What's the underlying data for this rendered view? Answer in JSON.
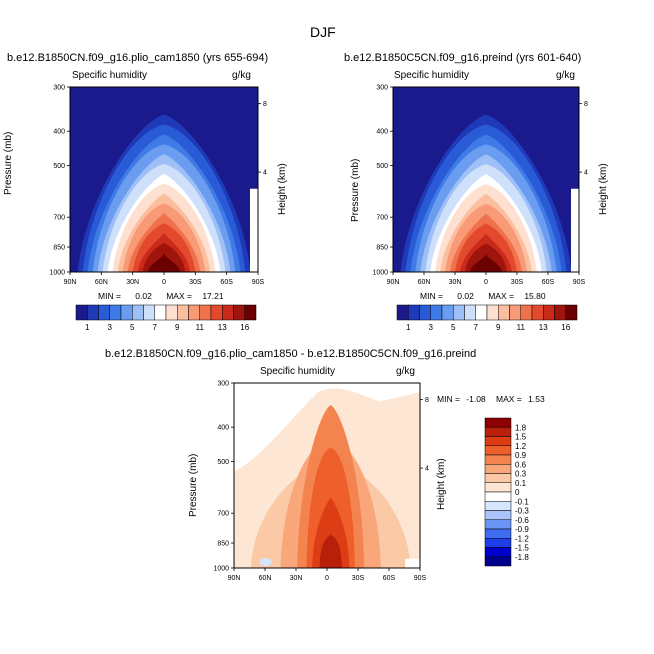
{
  "season": "DJF",
  "colors": {
    "abs_scale": [
      "#1a1a8c",
      "#1f3ab8",
      "#2a5bd6",
      "#3f7be6",
      "#6a9df0",
      "#9ec0f7",
      "#cfe0fb",
      "#ffffff",
      "#fde0cf",
      "#fbbfa0",
      "#f79a75",
      "#f0724d",
      "#e34a2d",
      "#c92a1a",
      "#a0140e",
      "#6b0000"
    ],
    "diff_scale": [
      "#00008b",
      "#0000cd",
      "#1e3fe6",
      "#3f6bf0",
      "#6b94f5",
      "#a9c4fa",
      "#d6e4fc",
      "#ffffff",
      "#fde6d3",
      "#fbc9a6",
      "#f8a67a",
      "#f4844f",
      "#ee5f2c",
      "#dc3d14",
      "#b8200a",
      "#8b0000"
    ]
  },
  "chart_data": [
    {
      "type": "heatmap",
      "panel": "top-left",
      "title": "b.e12.B1850CN.f09_g16.plio_cam1850 (yrs 655-694)",
      "variable": "Specific humidity",
      "units": "g/kg",
      "ylabel": "Pressure (mb)",
      "y2label": "Height (km)",
      "x_ticks": [
        "90N",
        "60N",
        "30N",
        "0",
        "30S",
        "60S",
        "90S"
      ],
      "y_ticks": [
        "300",
        "400",
        "500",
        "700",
        "850",
        "1000"
      ],
      "y2_ticks": [
        "8",
        "4"
      ],
      "stats": {
        "min_label": "MIN =",
        "min": "0.02",
        "max_label": "MAX =",
        "max": "17.21"
      },
      "peak_value": 17.21
    },
    {
      "type": "heatmap",
      "panel": "top-right",
      "title": "b.e12.B1850C5CN.f09_g16.preind (yrs 601-640)",
      "variable": "Specific humidity",
      "units": "g/kg",
      "ylabel": "Pressure (mb)",
      "y2label": "Height (km)",
      "x_ticks": [
        "90N",
        "60N",
        "30N",
        "0",
        "30S",
        "60S",
        "90S"
      ],
      "y_ticks": [
        "300",
        "400",
        "500",
        "700",
        "850",
        "1000"
      ],
      "y2_ticks": [
        "8",
        "4"
      ],
      "stats": {
        "min_label": "MIN =",
        "min": "0.02",
        "max_label": "MAX =",
        "max": "15.80"
      },
      "peak_value": 15.8
    },
    {
      "type": "heatmap",
      "panel": "bottom",
      "title": "b.e12.B1850CN.f09_g16.plio_cam1850 - b.e12.B1850C5CN.f09_g16.preind",
      "variable": "Specific humidity",
      "units": "g/kg",
      "ylabel": "Pressure (mb)",
      "y2label": "Height (km)",
      "x_ticks": [
        "90N",
        "60N",
        "30N",
        "0",
        "30S",
        "60S",
        "90S"
      ],
      "y_ticks": [
        "300",
        "400",
        "500",
        "700",
        "850",
        "1000"
      ],
      "y2_ticks": [
        "8",
        "4"
      ],
      "stats": {
        "min_label": "MIN =",
        "min": "-1.08",
        "max_label": "MAX =",
        "max": "1.53"
      }
    }
  ],
  "abs_colorbar_labels": [
    "1",
    "3",
    "5",
    "7",
    "9",
    "11",
    "13",
    "16"
  ],
  "diff_colorbar_labels": [
    "1.8",
    "1.5",
    "1.2",
    "0.9",
    "0.6",
    "0.3",
    "0.1",
    "0",
    "-0.1",
    "-0.3",
    "-0.6",
    "-0.9",
    "-1.2",
    "-1.5",
    "-1.8"
  ]
}
